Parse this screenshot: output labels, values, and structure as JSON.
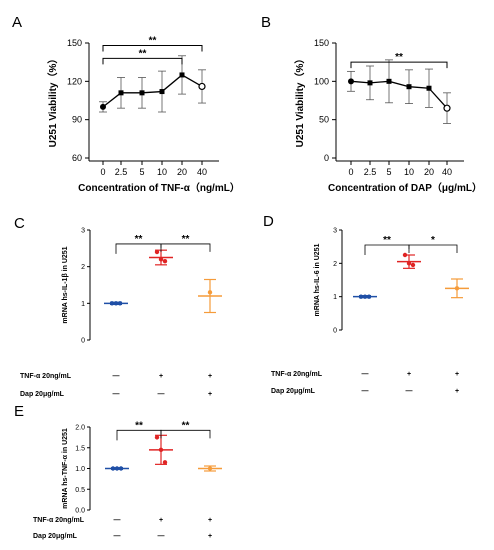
{
  "chart_data": [
    {
      "panel": "A",
      "type": "line",
      "x": [
        "0",
        "2.5",
        "5",
        "10",
        "20",
        "40"
      ],
      "y": [
        100,
        111,
        111,
        112,
        125,
        116
      ],
      "err": [
        4,
        12,
        12,
        16,
        15,
        13
      ],
      "xlabel": "Concentration of TNF-α（ng/mL）",
      "ylabel": "U251 Viability（%）",
      "ylim": [
        60,
        150
      ],
      "yticks": [
        "60",
        "90",
        "120",
        "150"
      ],
      "brackets": [
        {
          "from": 0,
          "to": 5,
          "level": 148,
          "label": "**"
        },
        {
          "from": 0,
          "to": 4,
          "level": 138,
          "label": "**"
        }
      ]
    },
    {
      "panel": "B",
      "type": "line",
      "x": [
        "0",
        "2.5",
        "5",
        "10",
        "20",
        "40"
      ],
      "y": [
        100,
        98,
        100,
        93,
        91,
        65
      ],
      "err": [
        13,
        22,
        28,
        22,
        25,
        20
      ],
      "xlabel": "Concentration of DAP（μg/mL）",
      "ylabel": "U251 Viability（%）",
      "ylim": [
        0,
        150
      ],
      "yticks": [
        "0",
        "50",
        "100",
        "150"
      ],
      "brackets": [
        {
          "from": 0,
          "to": 5,
          "level": 125,
          "label": "**"
        }
      ]
    },
    {
      "panel": "C",
      "type": "scatter",
      "groups": [
        {
          "mean": 1.0,
          "sd": 0.03,
          "points": [
            1.0,
            1.0,
            1.0
          ],
          "color": "#1f4fa6"
        },
        {
          "mean": 2.25,
          "sd": 0.2,
          "points": [
            2.4,
            2.2,
            2.15
          ],
          "color": "#e02424"
        },
        {
          "mean": 1.2,
          "sd": 0.45,
          "points": [
            1.3
          ],
          "color": "#f59b3a"
        }
      ],
      "ylabel": "mRNA hs-IL-1β in U251",
      "ylim": [
        0,
        3
      ],
      "yticks": [
        "0",
        "1",
        "2",
        "3"
      ],
      "brackets": [
        {
          "from": 0,
          "to": 1,
          "level": 2.62,
          "label": "**"
        },
        {
          "from": 1,
          "to": 2,
          "level": 2.62,
          "label": "**"
        }
      ],
      "rows": [
        {
          "label": "TNF-α 20ng/mL",
          "values": [
            "—",
            "+",
            "+"
          ]
        },
        {
          "label": "Dap    20μg/mL",
          "values": [
            "—",
            "—",
            "+"
          ]
        }
      ]
    },
    {
      "panel": "D",
      "type": "scatter",
      "groups": [
        {
          "mean": 1.0,
          "sd": 0.03,
          "points": [
            1.0,
            1.0,
            1.0
          ],
          "color": "#1f4fa6"
        },
        {
          "mean": 2.05,
          "sd": 0.2,
          "points": [
            2.25,
            2.0,
            1.95
          ],
          "color": "#e02424"
        },
        {
          "mean": 1.25,
          "sd": 0.28,
          "points": [
            1.25
          ],
          "color": "#f59b3a"
        }
      ],
      "ylabel": "mRNA hs-IL-6 in U251",
      "ylim": [
        0,
        3
      ],
      "yticks": [
        "0",
        "1",
        "2",
        "3"
      ],
      "brackets": [
        {
          "from": 0,
          "to": 1,
          "level": 2.55,
          "label": "**"
        },
        {
          "from": 1,
          "to": 2,
          "level": 2.55,
          "label": "*"
        }
      ],
      "rows": [
        {
          "label": "TNF-α 20ng/mL",
          "values": [
            "—",
            "+",
            "+"
          ]
        },
        {
          "label": "Dap    20μg/mL",
          "values": [
            "—",
            "—",
            "+"
          ]
        }
      ]
    },
    {
      "panel": "E",
      "type": "scatter",
      "groups": [
        {
          "mean": 1.0,
          "sd": 0.02,
          "points": [
            1.0,
            1.0,
            1.0
          ],
          "color": "#1f4fa6"
        },
        {
          "mean": 1.45,
          "sd": 0.35,
          "points": [
            1.75,
            1.45,
            1.15
          ],
          "color": "#e02424"
        },
        {
          "mean": 1.0,
          "sd": 0.06,
          "points": [
            1.0
          ],
          "color": "#f59b3a"
        }
      ],
      "ylabel": "mRNA hs-TNF-α in U251",
      "ylim": [
        0,
        2.0
      ],
      "yticks": [
        "0.0",
        "0.5",
        "1.0",
        "1.5",
        "2.0"
      ],
      "brackets": [
        {
          "from": 0,
          "to": 1,
          "level": 1.92,
          "label": "**"
        },
        {
          "from": 1,
          "to": 2,
          "level": 1.92,
          "label": "**"
        }
      ],
      "rows": [
        {
          "label": "TNF-α 20ng/mL",
          "values": [
            "—",
            "+",
            "+"
          ]
        },
        {
          "label": "Dap    20μg/mL",
          "values": [
            "—",
            "—",
            "+"
          ]
        }
      ]
    }
  ]
}
